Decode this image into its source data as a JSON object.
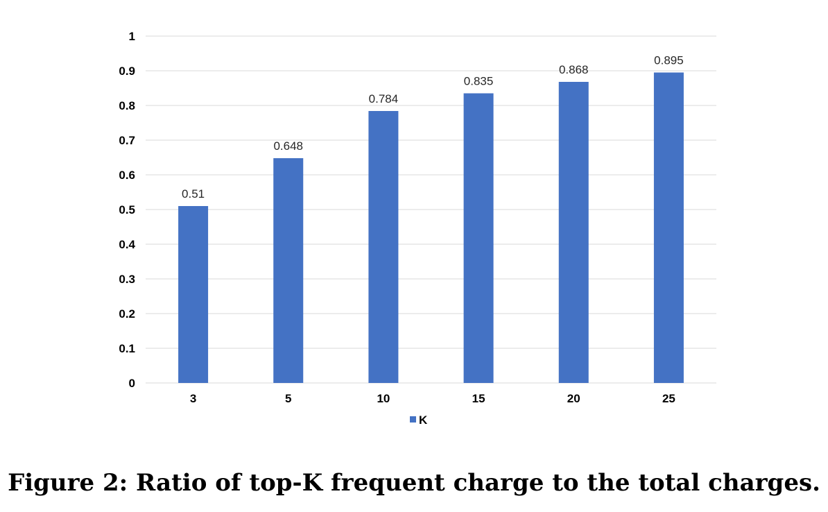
{
  "chart_data": {
    "type": "bar",
    "categories": [
      "3",
      "5",
      "10",
      "15",
      "20",
      "25"
    ],
    "series": [
      {
        "name": "K",
        "values": [
          0.51,
          0.648,
          0.784,
          0.835,
          0.868,
          0.895
        ],
        "labels": [
          "0.51",
          "0.648",
          "0.784",
          "0.835",
          "0.868",
          "0.895"
        ]
      }
    ],
    "yticks": [
      "0",
      "0.1",
      "0.2",
      "0.3",
      "0.4",
      "0.5",
      "0.6",
      "0.7",
      "0.8",
      "0.9",
      "1"
    ],
    "ylim": [
      0,
      1
    ],
    "xlabel": "",
    "ylabel": "",
    "grid": true,
    "legend_position": "bottom",
    "colors": {
      "bar": "#4472c4",
      "grid": "#d9d9d9"
    }
  },
  "caption": "Figure 2: Ratio of top-K frequent charge to the total charges."
}
